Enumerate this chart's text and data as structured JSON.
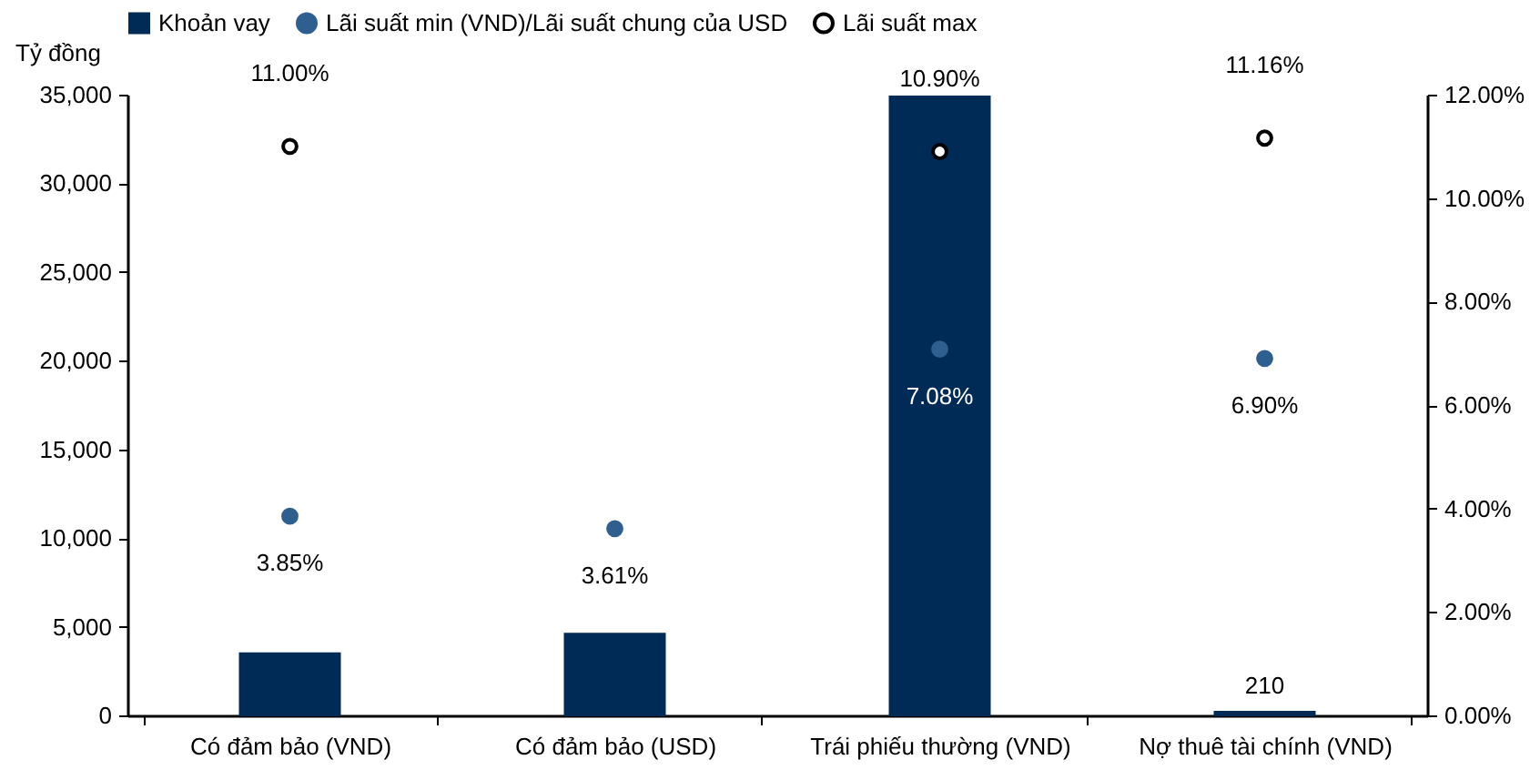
{
  "chart_data": {
    "type": "bar",
    "ylabel": "Tỷ đồng",
    "categories": [
      "Có đảm bảo (VND)",
      "Có đảm bảo (USD)",
      "Trái phiếu thường (VND)",
      "Nợ thuê tài chính (VND)"
    ],
    "series": [
      {
        "name": "Khoản vay",
        "color": "#002b57",
        "values": [
          3500,
          4600,
          34900,
          210
        ],
        "value_labels": [
          null,
          null,
          null,
          "210"
        ]
      },
      {
        "name": "Lãi suất min (VND)/Lãi suất chung của USD",
        "type": "scatter",
        "axis": "y2",
        "marker": "circle",
        "color": "#2f5f8f",
        "values": [
          3.85,
          3.61,
          7.08,
          6.9
        ],
        "value_labels": [
          "3.85%",
          "3.61%",
          "7.08%",
          "6.90%"
        ]
      },
      {
        "name": "Lãi suất max",
        "type": "scatter",
        "axis": "y2",
        "marker": "circle",
        "color": "#ffffff",
        "values": [
          11.0,
          null,
          10.9,
          11.16
        ],
        "value_labels": [
          "11.00%",
          null,
          "10.90%",
          "11.16%"
        ]
      }
    ],
    "ylim": [
      0,
      35000
    ],
    "yticks": [
      0,
      {
        "value": 5000,
        "label": "5,000"
      },
      {
        "value": 10000,
        "label": "10,000"
      },
      {
        "value": 15000,
        "label": "15,000"
      },
      {
        "value": 20000,
        "label": "20,000"
      },
      {
        "value": 25000,
        "label": "25,000"
      },
      {
        "value": 30000,
        "label": "30,000"
      },
      {
        "value": 35000,
        "label": "35,000"
      }
    ],
    "y2lim": [
      0,
      12
    ],
    "y2ticks": [
      {
        "value": 0,
        "label": "0.00%"
      },
      {
        "value": 2,
        "label": "2.00%"
      },
      {
        "value": 4,
        "label": "4.00%"
      },
      {
        "value": 6,
        "label": "6.00%"
      },
      {
        "value": 8,
        "label": "8.00%"
      },
      {
        "value": 10,
        "label": "10.00%"
      },
      {
        "value": 12,
        "label": "12.00%"
      }
    ],
    "legend": "top",
    "grid": false
  }
}
